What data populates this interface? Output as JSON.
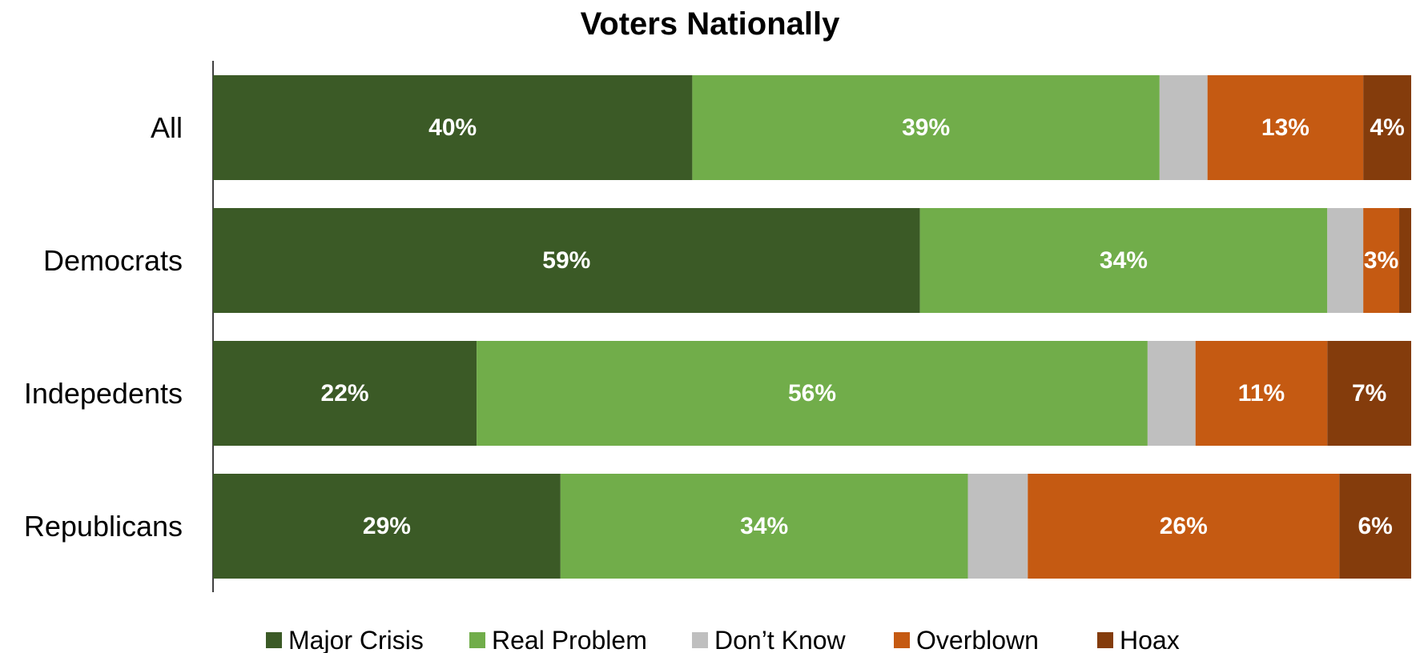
{
  "chart_data": {
    "type": "bar",
    "orientation": "horizontal",
    "stacked": true,
    "title": "Voters Nationally",
    "categories": [
      "All",
      "Democrats",
      "Indepedents",
      "Republicans"
    ],
    "xlim": [
      0,
      100
    ],
    "grid": false,
    "legend_position": "bottom",
    "series": [
      {
        "name": "Major Crisis",
        "color": "#3B5A26",
        "values": [
          40,
          59,
          22,
          29
        ],
        "labels": [
          "40%",
          "59%",
          "22%",
          "29%"
        ]
      },
      {
        "name": "Real Problem",
        "color": "#71AD4A",
        "values": [
          39,
          34,
          56,
          34
        ],
        "labels": [
          "39%",
          "34%",
          "56%",
          "34%"
        ]
      },
      {
        "name": "Don’t Know",
        "color": "#BFBFBF",
        "values": [
          4,
          3,
          4,
          5
        ],
        "labels": [
          "",
          "",
          "",
          ""
        ]
      },
      {
        "name": "Overblown",
        "color": "#C55A12",
        "values": [
          13,
          3,
          11,
          26
        ],
        "labels": [
          "13%",
          "3%",
          "11%",
          "26%"
        ]
      },
      {
        "name": "Hoax",
        "color": "#843C0C",
        "values": [
          4,
          1,
          7,
          6
        ],
        "labels": [
          "4%",
          "",
          "7%",
          "6%"
        ]
      }
    ]
  }
}
